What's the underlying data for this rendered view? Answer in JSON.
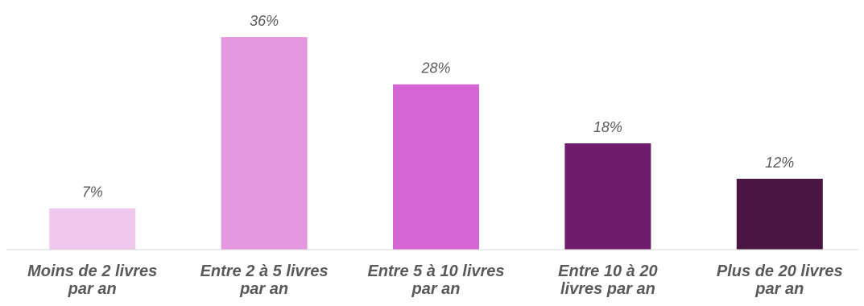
{
  "chart_data": {
    "type": "bar",
    "title": "",
    "xlabel": "",
    "ylabel": "",
    "categories": [
      [
        "Moins de 2 livres",
        "par an"
      ],
      [
        "Entre 2 à 5 livres",
        "par an"
      ],
      [
        "Entre 5 à 10 livres",
        "par an"
      ],
      [
        "Entre 10 à 20",
        "livres par an"
      ],
      [
        "Plus de 20 livres",
        "par an"
      ]
    ],
    "values": [
      7,
      36,
      28,
      18,
      12
    ],
    "data_labels": [
      "7%",
      "36%",
      "28%",
      "18%",
      "12%"
    ],
    "unit": "%",
    "ylim": [
      0,
      40
    ],
    "grid": false,
    "bar_colors": [
      "#f0c8ee",
      "#e398e0",
      "#d665d4",
      "#6e1c6b",
      "#4a1443"
    ],
    "axis_color": "#d9d9d9",
    "label_color": "#595959"
  }
}
